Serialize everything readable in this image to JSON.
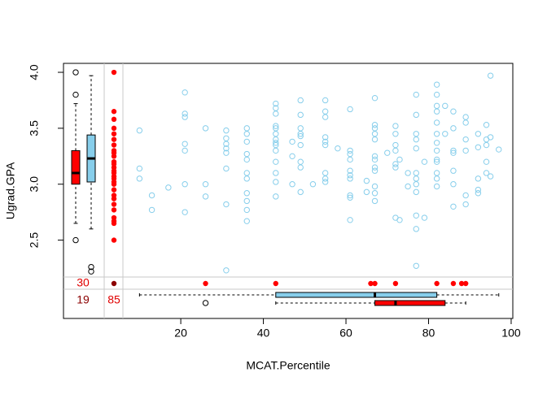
{
  "chart_data": {
    "type": "scatter",
    "x_label": "MCAT.Percentile",
    "y_label": "Ugrad.GPA",
    "xlim": [
      -8.4,
      100.4
    ],
    "ylim": [
      1.8,
      4.08
    ],
    "xticks": [
      20,
      40,
      60,
      80,
      100
    ],
    "yticks": [
      2.5,
      {
        "value": 3,
        "label": "3.0"
      },
      3.5,
      {
        "value": 4,
        "label": "4.0"
      }
    ],
    "color": "#87ceeb",
    "missing_color": "#ff0000",
    "both_missing_color": "#8b0000",
    "points": [
      [
        10,
        3.48
      ],
      [
        10,
        3.14
      ],
      [
        10,
        3.05
      ],
      [
        13,
        2.9
      ],
      [
        13,
        2.77
      ],
      [
        17,
        2.97
      ],
      [
        21,
        3.82
      ],
      [
        21,
        3.63
      ],
      [
        21,
        3.6
      ],
      [
        21,
        3.36
      ],
      [
        21,
        3.3
      ],
      [
        21,
        3.0
      ],
      [
        21,
        2.75
      ],
      [
        26,
        3.5
      ],
      [
        26,
        3.0
      ],
      [
        26,
        2.89
      ],
      [
        31,
        3.48
      ],
      [
        31,
        3.41
      ],
      [
        31,
        3.36
      ],
      [
        31,
        3.32
      ],
      [
        31,
        3.28
      ],
      [
        31,
        3.14
      ],
      [
        31,
        2.82
      ],
      [
        31,
        2.23
      ],
      [
        36,
        3.5
      ],
      [
        36,
        3.45
      ],
      [
        36,
        3.38
      ],
      [
        36,
        3.27
      ],
      [
        36,
        3.22
      ],
      [
        36,
        3.1
      ],
      [
        36,
        3.05
      ],
      [
        36,
        2.92
      ],
      [
        36,
        2.85
      ],
      [
        36,
        2.77
      ],
      [
        36,
        2.67
      ],
      [
        43,
        3.72
      ],
      [
        43,
        3.68
      ],
      [
        43,
        3.63
      ],
      [
        43,
        3.52
      ],
      [
        43,
        3.5
      ],
      [
        43,
        3.45
      ],
      [
        43,
        3.4
      ],
      [
        43,
        3.37
      ],
      [
        43,
        3.35
      ],
      [
        43,
        3.3
      ],
      [
        43,
        3.2
      ],
      [
        43,
        3.1
      ],
      [
        43,
        3.02
      ],
      [
        43,
        2.89
      ],
      [
        47,
        3.38
      ],
      [
        47,
        3.25
      ],
      [
        47,
        3.0
      ],
      [
        49,
        3.75
      ],
      [
        49,
        3.62
      ],
      [
        49,
        3.5
      ],
      [
        49,
        3.45
      ],
      [
        49,
        3.43
      ],
      [
        49,
        3.35
      ],
      [
        49,
        3.2
      ],
      [
        49,
        3.15
      ],
      [
        49,
        2.93
      ],
      [
        52,
        3.0
      ],
      [
        55,
        3.75
      ],
      [
        55,
        3.65
      ],
      [
        55,
        3.6
      ],
      [
        55,
        3.42
      ],
      [
        55,
        3.38
      ],
      [
        55,
        3.35
      ],
      [
        55,
        3.1
      ],
      [
        55,
        3.05
      ],
      [
        55,
        3.02
      ],
      [
        58,
        3.32
      ],
      [
        61,
        3.67
      ],
      [
        61,
        3.3
      ],
      [
        61,
        3.27
      ],
      [
        61,
        3.22
      ],
      [
        61,
        3.12
      ],
      [
        61,
        3.08
      ],
      [
        61,
        3.05
      ],
      [
        61,
        2.9
      ],
      [
        61,
        2.88
      ],
      [
        61,
        2.68
      ],
      [
        65,
        3.03
      ],
      [
        65,
        2.93
      ],
      [
        67,
        3.77
      ],
      [
        67,
        3.53
      ],
      [
        67,
        3.5
      ],
      [
        67,
        3.45
      ],
      [
        67,
        3.4
      ],
      [
        67,
        3.25
      ],
      [
        67,
        3.22
      ],
      [
        67,
        3.15
      ],
      [
        67,
        3.12
      ],
      [
        67,
        2.98
      ],
      [
        67,
        2.92
      ],
      [
        67,
        2.85
      ],
      [
        70,
        3.28
      ],
      [
        72,
        3.52
      ],
      [
        72,
        3.45
      ],
      [
        72,
        3.35
      ],
      [
        72,
        3.3
      ],
      [
        72,
        3.18
      ],
      [
        72,
        3.15
      ],
      [
        72,
        2.7
      ],
      [
        73,
        3.22
      ],
      [
        73,
        2.68
      ],
      [
        75,
        3.1
      ],
      [
        75,
        2.98
      ],
      [
        77,
        3.8
      ],
      [
        77,
        3.62
      ],
      [
        77,
        3.45
      ],
      [
        77,
        3.4
      ],
      [
        77,
        3.32
      ],
      [
        77,
        3.1
      ],
      [
        77,
        3.05
      ],
      [
        77,
        3.0
      ],
      [
        77,
        2.93
      ],
      [
        77,
        2.72
      ],
      [
        77,
        2.6
      ],
      [
        77,
        2.27
      ],
      [
        79,
        3.2
      ],
      [
        79,
        2.7
      ],
      [
        82,
        3.89
      ],
      [
        82,
        3.8
      ],
      [
        82,
        3.7
      ],
      [
        82,
        3.65
      ],
      [
        82,
        3.55
      ],
      [
        82,
        3.45
      ],
      [
        82,
        3.37
      ],
      [
        82,
        3.3
      ],
      [
        82,
        3.22
      ],
      [
        82,
        3.2
      ],
      [
        82,
        3.1
      ],
      [
        82,
        3.05
      ],
      [
        82,
        2.98
      ],
      [
        84,
        3.7
      ],
      [
        84,
        3.45
      ],
      [
        86,
        3.65
      ],
      [
        86,
        3.5
      ],
      [
        86,
        3.3
      ],
      [
        86,
        3.28
      ],
      [
        86,
        3.12
      ],
      [
        86,
        3.0
      ],
      [
        86,
        2.8
      ],
      [
        89,
        3.6
      ],
      [
        89,
        3.55
      ],
      [
        89,
        3.4
      ],
      [
        89,
        3.3
      ],
      [
        89,
        2.9
      ],
      [
        89,
        2.82
      ],
      [
        92,
        3.45
      ],
      [
        92,
        3.33
      ],
      [
        92,
        3.05
      ],
      [
        92,
        2.95
      ],
      [
        92,
        2.92
      ],
      [
        94,
        3.53
      ],
      [
        94,
        3.4
      ],
      [
        94,
        3.35
      ],
      [
        94,
        3.2
      ],
      [
        94,
        3.1
      ],
      [
        95,
        3.97
      ],
      [
        95,
        3.42
      ],
      [
        95,
        3.07
      ],
      [
        97,
        3.31
      ]
    ],
    "x_missing_y": [
      4.0,
      3.65,
      3.58,
      3.5,
      3.45,
      3.4,
      3.35,
      3.3,
      3.28,
      3.25,
      3.2,
      3.18,
      3.15,
      3.12,
      3.1,
      3.07,
      3.05,
      3.02,
      3.0,
      2.95,
      2.9,
      2.87,
      2.82,
      2.77,
      2.7,
      2.67,
      2.65,
      2.5
    ],
    "y_missing_x": [
      26,
      43,
      66,
      67,
      72,
      82,
      86,
      88,
      89
    ],
    "missing_counts": [
      {
        "value": 30,
        "color": "#e00000"
      },
      {
        "value": 19,
        "color": "#8b0000"
      },
      {
        "value": 85,
        "color": "#e00000"
      }
    ],
    "y_boxplots": [
      {
        "color": "#ff0000",
        "stats": [
          2.65,
          3.0,
          3.1,
          3.3,
          3.72
        ],
        "outliers": [
          4.0,
          3.8,
          2.5
        ]
      },
      {
        "color": "#87ceeb",
        "stats": [
          2.6,
          3.02,
          3.23,
          3.44,
          3.97
        ],
        "outliers": [
          2.26,
          2.22
        ]
      }
    ],
    "x_boxplots": [
      {
        "color": "#87ceeb",
        "stats": [
          10,
          43,
          67,
          82,
          97
        ],
        "outliers": []
      },
      {
        "color": "#ff0000",
        "stats": [
          43,
          67,
          72,
          84,
          89
        ],
        "outliers": [
          26
        ]
      }
    ]
  }
}
